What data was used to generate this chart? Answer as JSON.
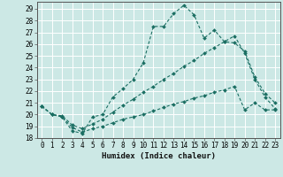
{
  "xlabel": "Humidex (Indice chaleur)",
  "ylabel": "",
  "bg_color": "#cce8e5",
  "line_color": "#1a6e62",
  "grid_color": "#ffffff",
  "xlim": [
    -0.5,
    23.5
  ],
  "ylim": [
    18,
    29.6
  ],
  "xticks": [
    0,
    1,
    2,
    3,
    4,
    5,
    6,
    7,
    8,
    9,
    10,
    11,
    12,
    13,
    14,
    15,
    16,
    17,
    18,
    19,
    20,
    21,
    22,
    23
  ],
  "yticks": [
    18,
    19,
    20,
    21,
    22,
    23,
    24,
    25,
    26,
    27,
    28,
    29
  ],
  "lines": [
    {
      "x": [
        0,
        1,
        2,
        3,
        4,
        5,
        6,
        7,
        8,
        9,
        10,
        11,
        12,
        13,
        14,
        15,
        16,
        17,
        18,
        19,
        20,
        21,
        22,
        23
      ],
      "y": [
        20.7,
        20.0,
        19.8,
        18.6,
        18.4,
        19.8,
        20.0,
        21.5,
        22.2,
        23.0,
        24.4,
        27.5,
        27.5,
        28.6,
        29.3,
        28.5,
        26.5,
        27.2,
        26.2,
        26.1,
        25.4,
        23.2,
        21.8,
        21.0
      ]
    },
    {
      "x": [
        0,
        1,
        2,
        3,
        4,
        5,
        6,
        7,
        8,
        9,
        10,
        11,
        12,
        13,
        14,
        15,
        16,
        17,
        18,
        19,
        20,
        21,
        22,
        23
      ],
      "y": [
        20.7,
        20.0,
        19.9,
        19.1,
        18.8,
        19.2,
        19.6,
        20.2,
        20.8,
        21.3,
        21.9,
        22.4,
        23.0,
        23.5,
        24.1,
        24.6,
        25.2,
        25.7,
        26.2,
        26.7,
        25.2,
        23.0,
        21.5,
        20.5
      ]
    },
    {
      "x": [
        0,
        1,
        2,
        3,
        4,
        5,
        6,
        7,
        8,
        9,
        10,
        11,
        12,
        13,
        14,
        15,
        16,
        17,
        18,
        19,
        20,
        21,
        22,
        23
      ],
      "y": [
        20.7,
        20.0,
        19.8,
        18.9,
        18.5,
        18.8,
        19.0,
        19.3,
        19.6,
        19.8,
        20.0,
        20.3,
        20.6,
        20.9,
        21.1,
        21.4,
        21.6,
        21.9,
        22.1,
        22.4,
        20.4,
        21.0,
        20.4,
        20.4
      ]
    }
  ]
}
